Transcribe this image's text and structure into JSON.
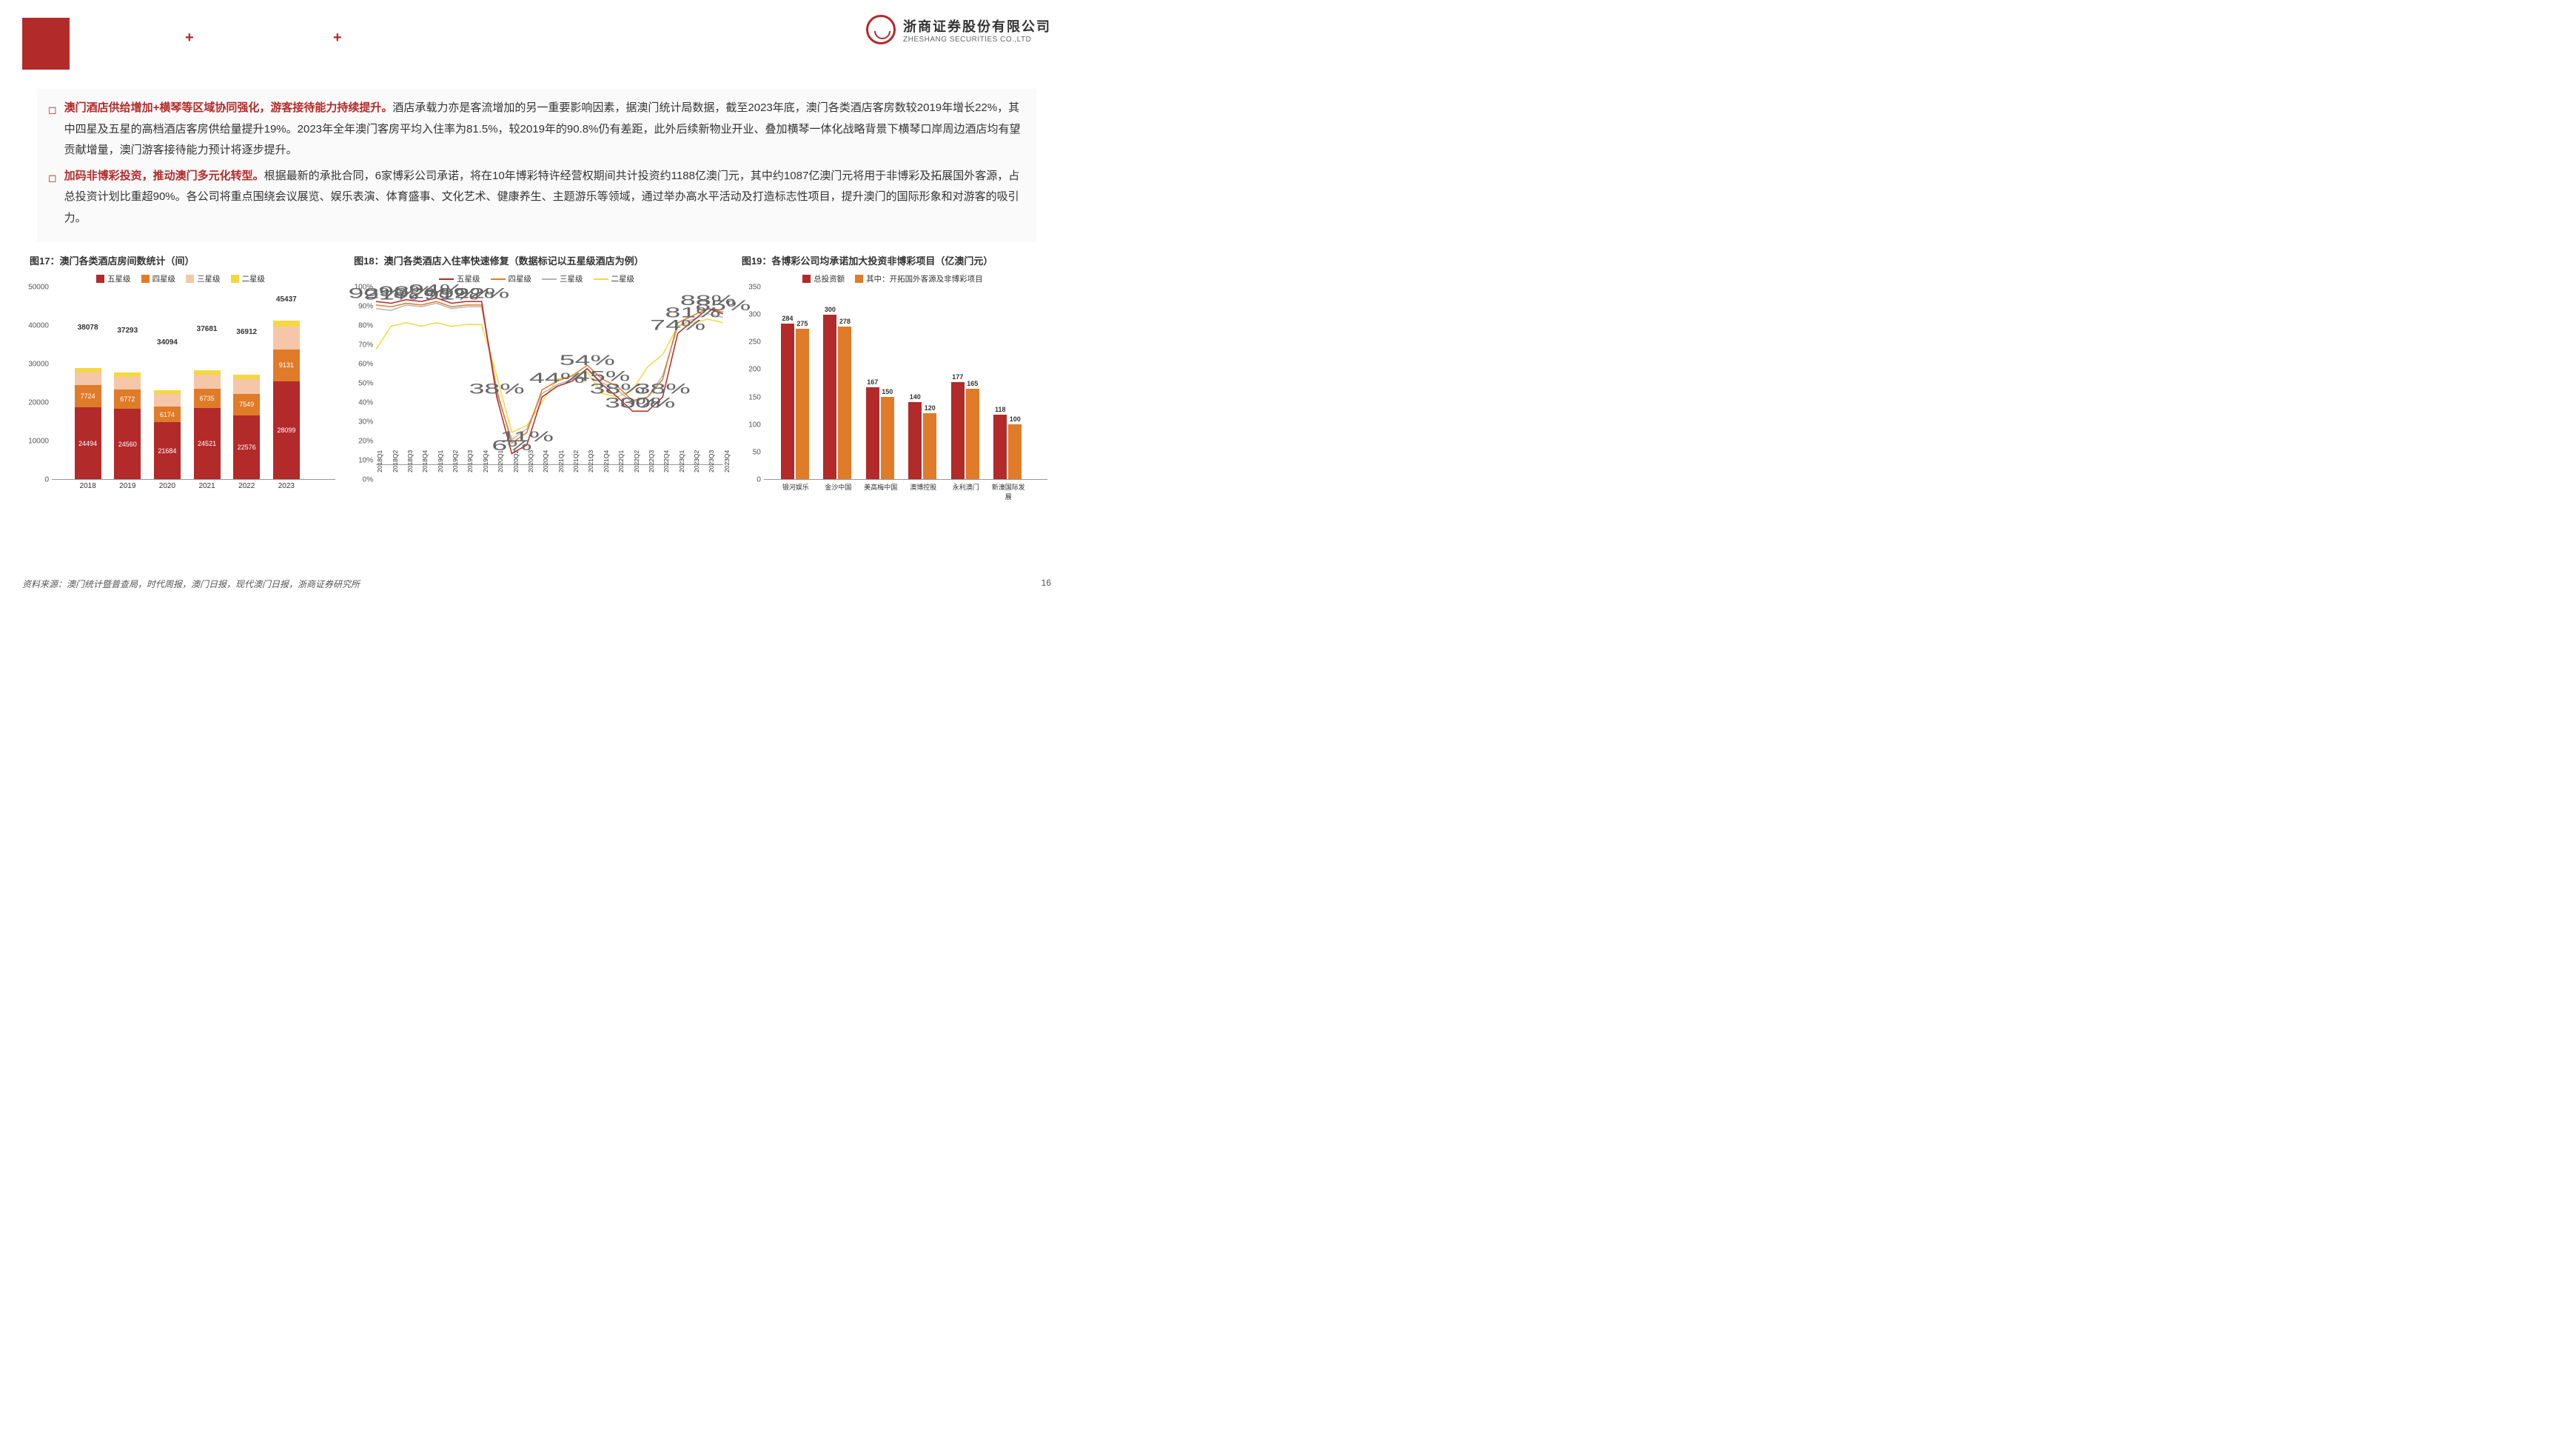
{
  "company": {
    "cn": "浙商证券股份有限公司",
    "en": "ZHESHANG SECURITIES CO.,LTD"
  },
  "page_number": "16",
  "source": "资料来源：澳门统计暨普查局，时代周报，澳门日报，现代澳门日报，浙商证券研究所",
  "bullets": [
    {
      "lead": "澳门酒店供给增加+横琴等区域协同强化，游客接待能力持续提升。",
      "text": "酒店承载力亦是客流增加的另一重要影响因素，据澳门统计局数据，截至2023年底，澳门各类酒店客房数较2019年增长22%，其中四星及五星的高档酒店客房供给量提升19%。2023年全年澳门客房平均入住率为81.5%，较2019年的90.8%仍有差距，此外后续新物业开业、叠加横琴一体化战略背景下横琴口岸周边酒店均有望贡献增量，澳门游客接待能力预计将逐步提升。"
    },
    {
      "lead": "加码非博彩投资，推动澳门多元化转型。",
      "text": "根据最新的承批合同，6家博彩公司承诺，将在10年博彩特许经营权期间共计投资约1188亿澳门元，其中约1087亿澳门元将用于非博彩及拓展国外客源，占总投资计划比重超90%。各公司将重点围绕会议展览、娱乐表演、体育盛事、文化艺术、健康养生、主题游乐等领域，通过举办高水平活动及打造标志性项目，提升澳门的国际形象和对游客的吸引力。"
    }
  ],
  "chart17": {
    "title": "图17：澳门各类酒店房间数统计（间）",
    "type": "stacked-bar",
    "legend": [
      "五星级",
      "四星级",
      "三星级",
      "二星级"
    ],
    "colors": [
      "#b22a2a",
      "#e07b2a",
      "#f5c7a8",
      "#f5d742"
    ],
    "ylim": [
      0,
      50000
    ],
    "ytick_step": 10000,
    "categories": [
      "2018",
      "2019",
      "2020",
      "2021",
      "2022",
      "2023"
    ],
    "totals": [
      38078,
      37293,
      34094,
      37681,
      36912,
      45437
    ],
    "series": [
      [
        24494,
        24560,
        21684,
        24521,
        22576,
        28099
      ],
      [
        7724,
        6772,
        6174,
        6735,
        7549,
        9131
      ],
      [
        4200,
        4300,
        4600,
        4800,
        5100,
        6500
      ],
      [
        1660,
        1661,
        1636,
        1625,
        1687,
        1707
      ]
    ],
    "show_values": {
      "five": [
        24494,
        24560,
        21684,
        24521,
        22576,
        28099
      ],
      "four": [
        7724,
        6772,
        6174,
        6735,
        7549,
        9131
      ]
    }
  },
  "chart18": {
    "title": "图18：澳门各类酒店入住率快速修复（数据标记以五星级酒店为例）",
    "type": "line",
    "legend": [
      "五星级",
      "四星级",
      "三星级",
      "二星级"
    ],
    "colors": [
      "#b22a2a",
      "#e07b2a",
      "#b5b5b5",
      "#f5d742"
    ],
    "ylim": [
      0,
      100
    ],
    "ytick_step": 10,
    "x_categories": [
      "2018Q1",
      "2018Q2",
      "2018Q3",
      "2018Q4",
      "2019Q1",
      "2019Q2",
      "2019Q3",
      "2019Q4",
      "2020Q1",
      "2020Q2",
      "2020Q3",
      "2020Q4",
      "2021Q1",
      "2021Q2",
      "2021Q3",
      "2021Q4",
      "2022Q1",
      "2022Q2",
      "2022Q3",
      "2022Q4",
      "2023Q1",
      "2023Q2",
      "2023Q3",
      "2023Q4"
    ],
    "series": {
      "five": [
        92,
        91,
        93,
        92,
        94,
        91,
        92,
        92,
        38,
        6,
        11,
        38,
        44,
        47,
        54,
        45,
        38,
        30,
        30,
        38,
        74,
        81,
        88,
        85
      ],
      "four": [
        90,
        89,
        91,
        90,
        92,
        89,
        90,
        90,
        42,
        12,
        18,
        42,
        47,
        50,
        56,
        48,
        44,
        36,
        38,
        48,
        80,
        84,
        88,
        86
      ],
      "three": [
        88,
        87,
        90,
        89,
        91,
        88,
        89,
        89,
        40,
        14,
        20,
        40,
        45,
        48,
        54,
        46,
        42,
        35,
        38,
        50,
        78,
        82,
        85,
        83
      ],
      "two": [
        65,
        78,
        80,
        78,
        80,
        78,
        79,
        79,
        50,
        18,
        22,
        35,
        48,
        50,
        52,
        40,
        38,
        42,
        55,
        62,
        78,
        80,
        82,
        80
      ]
    },
    "five_labels": {
      "0": "92%",
      "1": "91%",
      "2": "93%",
      "3": "92%",
      "4": "94%",
      "5": "91%",
      "6": "92%",
      "7": "92%",
      "8": "38%",
      "9": "6%",
      "10": "11%",
      "12": "44%",
      "14": "54%",
      "15": "45%",
      "16": "38%",
      "17": "30%",
      "18": "30%",
      "19": "38%",
      "20": "74%",
      "21": "81%",
      "22": "88%",
      "23": "85%"
    }
  },
  "chart19": {
    "title": "图19：各博彩公司均承诺加大投资非博彩项目（亿澳门元）",
    "type": "grouped-bar",
    "legend": [
      "总投资额",
      "其中：开拓国外客源及非博彩项目"
    ],
    "colors": [
      "#b22a2a",
      "#e07b2a"
    ],
    "ylim": [
      0,
      350
    ],
    "ytick_step": 50,
    "categories": [
      "银河娱乐",
      "金沙中国",
      "美高梅中国",
      "澳博控股",
      "永利澳门",
      "新濠国际发展"
    ],
    "series": [
      [
        284,
        300,
        167,
        140,
        177,
        118
      ],
      [
        275,
        278,
        150,
        120,
        165,
        100
      ]
    ]
  }
}
